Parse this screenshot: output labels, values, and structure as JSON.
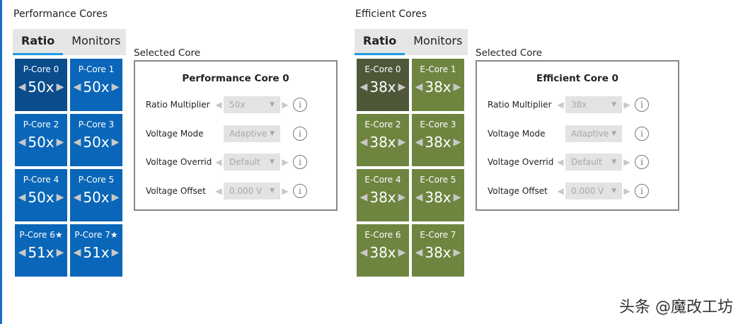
{
  "colors": {
    "p_tile": "#0a66b8",
    "p_selected": "#0a4c8c",
    "e_tile": "#6e8540",
    "e_selected": "#4e5838"
  },
  "sections": [
    {
      "title": "Performance Cores",
      "tabs": [
        "Ratio",
        "Monitors"
      ],
      "active_tab": 0,
      "kind": "p",
      "cores": [
        {
          "name": "P-Core 0",
          "ratio": "50x"
        },
        {
          "name": "P-Core 1",
          "ratio": "50x"
        },
        {
          "name": "P-Core 2",
          "ratio": "50x"
        },
        {
          "name": "P-Core 3",
          "ratio": "50x"
        },
        {
          "name": "P-Core 4",
          "ratio": "50x"
        },
        {
          "name": "P-Core 5",
          "ratio": "50x"
        },
        {
          "name": "P-Core 6★",
          "ratio": "51x"
        },
        {
          "name": "P-Core 7★",
          "ratio": "51x"
        }
      ],
      "selected_index": 0,
      "selected_label": "Selected Core",
      "panel_title": "Performance Core 0",
      "settings": [
        {
          "label": "Ratio Multiplier",
          "value": "50x",
          "arrows": true
        },
        {
          "label": "Voltage Mode",
          "value": "Adaptive",
          "arrows": false
        },
        {
          "label": "Voltage Overrid",
          "value": "Default",
          "arrows": true
        },
        {
          "label": "Voltage Offset",
          "value": "0.000 V",
          "arrows": true
        }
      ]
    },
    {
      "title": "Efficient Cores",
      "tabs": [
        "Ratio",
        "Monitors"
      ],
      "active_tab": 0,
      "kind": "e",
      "cores": [
        {
          "name": "E-Core 0",
          "ratio": "38x"
        },
        {
          "name": "E-Core 1",
          "ratio": "38x"
        },
        {
          "name": "E-Core 2",
          "ratio": "38x"
        },
        {
          "name": "E-Core 3",
          "ratio": "38x"
        },
        {
          "name": "E-Core 4",
          "ratio": "38x"
        },
        {
          "name": "E-Core 5",
          "ratio": "38x"
        },
        {
          "name": "E-Core 6",
          "ratio": "38x"
        },
        {
          "name": "E-Core 7",
          "ratio": "38x"
        }
      ],
      "selected_index": 0,
      "selected_label": "Selected Core",
      "panel_title": "Efficient Core 0",
      "settings": [
        {
          "label": "Ratio Multiplier",
          "value": "38x",
          "arrows": true
        },
        {
          "label": "Voltage Mode",
          "value": "Adaptive",
          "arrows": false
        },
        {
          "label": "Voltage Overrid",
          "value": "Default",
          "arrows": true
        },
        {
          "label": "Voltage Offset",
          "value": "0.000 V",
          "arrows": true
        }
      ]
    }
  ],
  "watermark": "头条 @魔改工坊"
}
